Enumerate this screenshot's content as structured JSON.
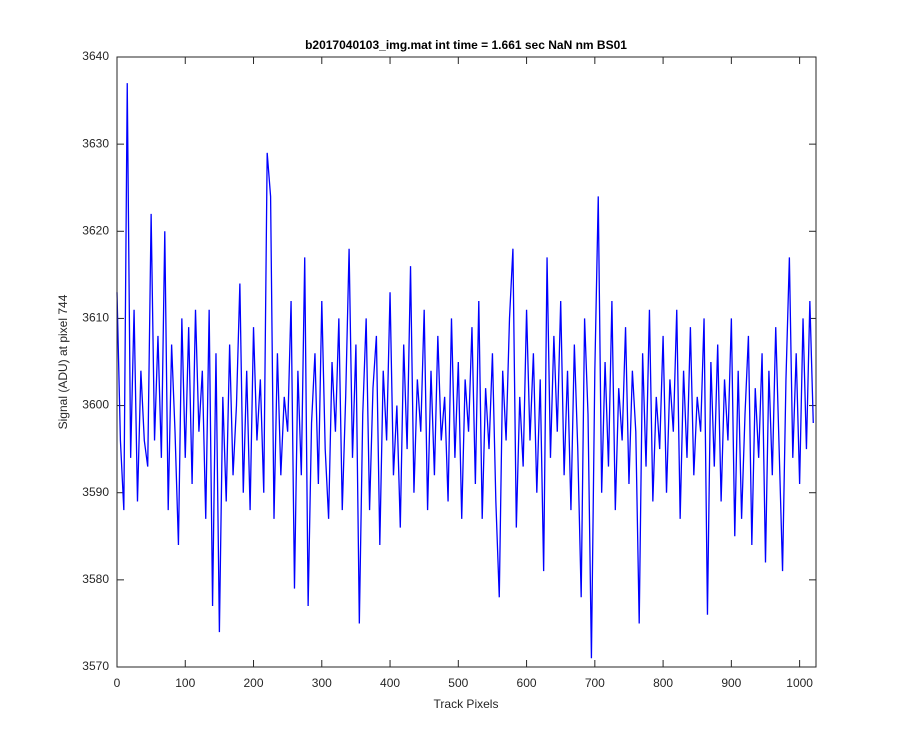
{
  "chart_data": {
    "type": "line",
    "title": "b2017040103_img.mat int time = 1.661 sec  NaN nm BS01",
    "xlabel": "Track Pixels",
    "ylabel": "Signal (ADU) at pixel 744",
    "color": "#0000ff",
    "grid": false,
    "xlim": [
      0,
      1024
    ],
    "ylim": [
      3570,
      3640
    ],
    "xticks": [
      0,
      100,
      200,
      300,
      400,
      500,
      600,
      700,
      800,
      900,
      1000
    ],
    "yticks": [
      3570,
      3580,
      3590,
      3600,
      3610,
      3620,
      3630,
      3640
    ],
    "x": [
      0,
      5,
      10,
      15,
      20,
      25,
      30,
      35,
      40,
      45,
      50,
      55,
      60,
      65,
      70,
      75,
      80,
      85,
      90,
      95,
      100,
      105,
      110,
      115,
      120,
      125,
      130,
      135,
      140,
      145,
      150,
      155,
      160,
      165,
      170,
      175,
      180,
      185,
      190,
      195,
      200,
      205,
      210,
      215,
      220,
      225,
      230,
      235,
      240,
      245,
      250,
      255,
      260,
      265,
      270,
      275,
      280,
      285,
      290,
      295,
      300,
      305,
      310,
      315,
      320,
      325,
      330,
      335,
      340,
      345,
      350,
      355,
      360,
      365,
      370,
      375,
      380,
      385,
      390,
      395,
      400,
      405,
      410,
      415,
      420,
      425,
      430,
      435,
      440,
      445,
      450,
      455,
      460,
      465,
      470,
      475,
      480,
      485,
      490,
      495,
      500,
      505,
      510,
      515,
      520,
      525,
      530,
      535,
      540,
      545,
      550,
      555,
      560,
      565,
      570,
      575,
      580,
      585,
      590,
      595,
      600,
      605,
      610,
      615,
      620,
      625,
      630,
      635,
      640,
      645,
      650,
      655,
      660,
      665,
      670,
      675,
      680,
      685,
      690,
      695,
      700,
      705,
      710,
      715,
      720,
      725,
      730,
      735,
      740,
      745,
      750,
      755,
      760,
      765,
      770,
      775,
      780,
      785,
      790,
      795,
      800,
      805,
      810,
      815,
      820,
      825,
      830,
      835,
      840,
      845,
      850,
      855,
      860,
      865,
      870,
      875,
      880,
      885,
      890,
      895,
      900,
      905,
      910,
      915,
      920,
      925,
      930,
      935,
      940,
      945,
      950,
      955,
      960,
      965,
      970,
      975,
      980,
      985,
      990,
      995,
      1000,
      1005,
      1010,
      1015,
      1020
    ],
    "values": [
      3613,
      3596,
      3588,
      3637,
      3594,
      3611,
      3589,
      3604,
      3596,
      3593,
      3622,
      3596,
      3608,
      3594,
      3620,
      3588,
      3607,
      3597,
      3584,
      3610,
      3594,
      3609,
      3591,
      3611,
      3597,
      3604,
      3587,
      3611,
      3577,
      3606,
      3574,
      3601,
      3589,
      3607,
      3592,
      3600,
      3614,
      3590,
      3604,
      3588,
      3609,
      3596,
      3603,
      3590,
      3629,
      3624,
      3587,
      3606,
      3592,
      3601,
      3597,
      3612,
      3579,
      3604,
      3592,
      3617,
      3577,
      3598,
      3606,
      3591,
      3612,
      3595,
      3587,
      3605,
      3597,
      3610,
      3588,
      3601,
      3618,
      3594,
      3607,
      3575,
      3599,
      3610,
      3588,
      3602,
      3608,
      3584,
      3604,
      3596,
      3613,
      3592,
      3600,
      3586,
      3607,
      3595,
      3616,
      3590,
      3603,
      3597,
      3611,
      3588,
      3604,
      3592,
      3608,
      3596,
      3601,
      3589,
      3610,
      3594,
      3605,
      3587,
      3603,
      3597,
      3609,
      3591,
      3612,
      3587,
      3602,
      3595,
      3606,
      3589,
      3578,
      3604,
      3596,
      3610,
      3618,
      3586,
      3601,
      3593,
      3611,
      3596,
      3606,
      3590,
      3603,
      3581,
      3617,
      3594,
      3608,
      3597,
      3612,
      3592,
      3604,
      3588,
      3607,
      3595,
      3578,
      3610,
      3599,
      3571,
      3604,
      3624,
      3590,
      3605,
      3593,
      3612,
      3588,
      3602,
      3596,
      3609,
      3591,
      3604,
      3597,
      3575,
      3606,
      3593,
      3611,
      3589,
      3601,
      3595,
      3608,
      3590,
      3603,
      3597,
      3611,
      3587,
      3604,
      3594,
      3609,
      3592,
      3601,
      3597,
      3610,
      3576,
      3605,
      3593,
      3607,
      3589,
      3603,
      3596,
      3610,
      3585,
      3604,
      3587,
      3599,
      3608,
      3584,
      3602,
      3594,
      3606,
      3582,
      3604,
      3592,
      3609,
      3595,
      3581,
      3603,
      3617,
      3594,
      3606,
      3591,
      3610,
      3595,
      3612,
      3598
    ]
  }
}
